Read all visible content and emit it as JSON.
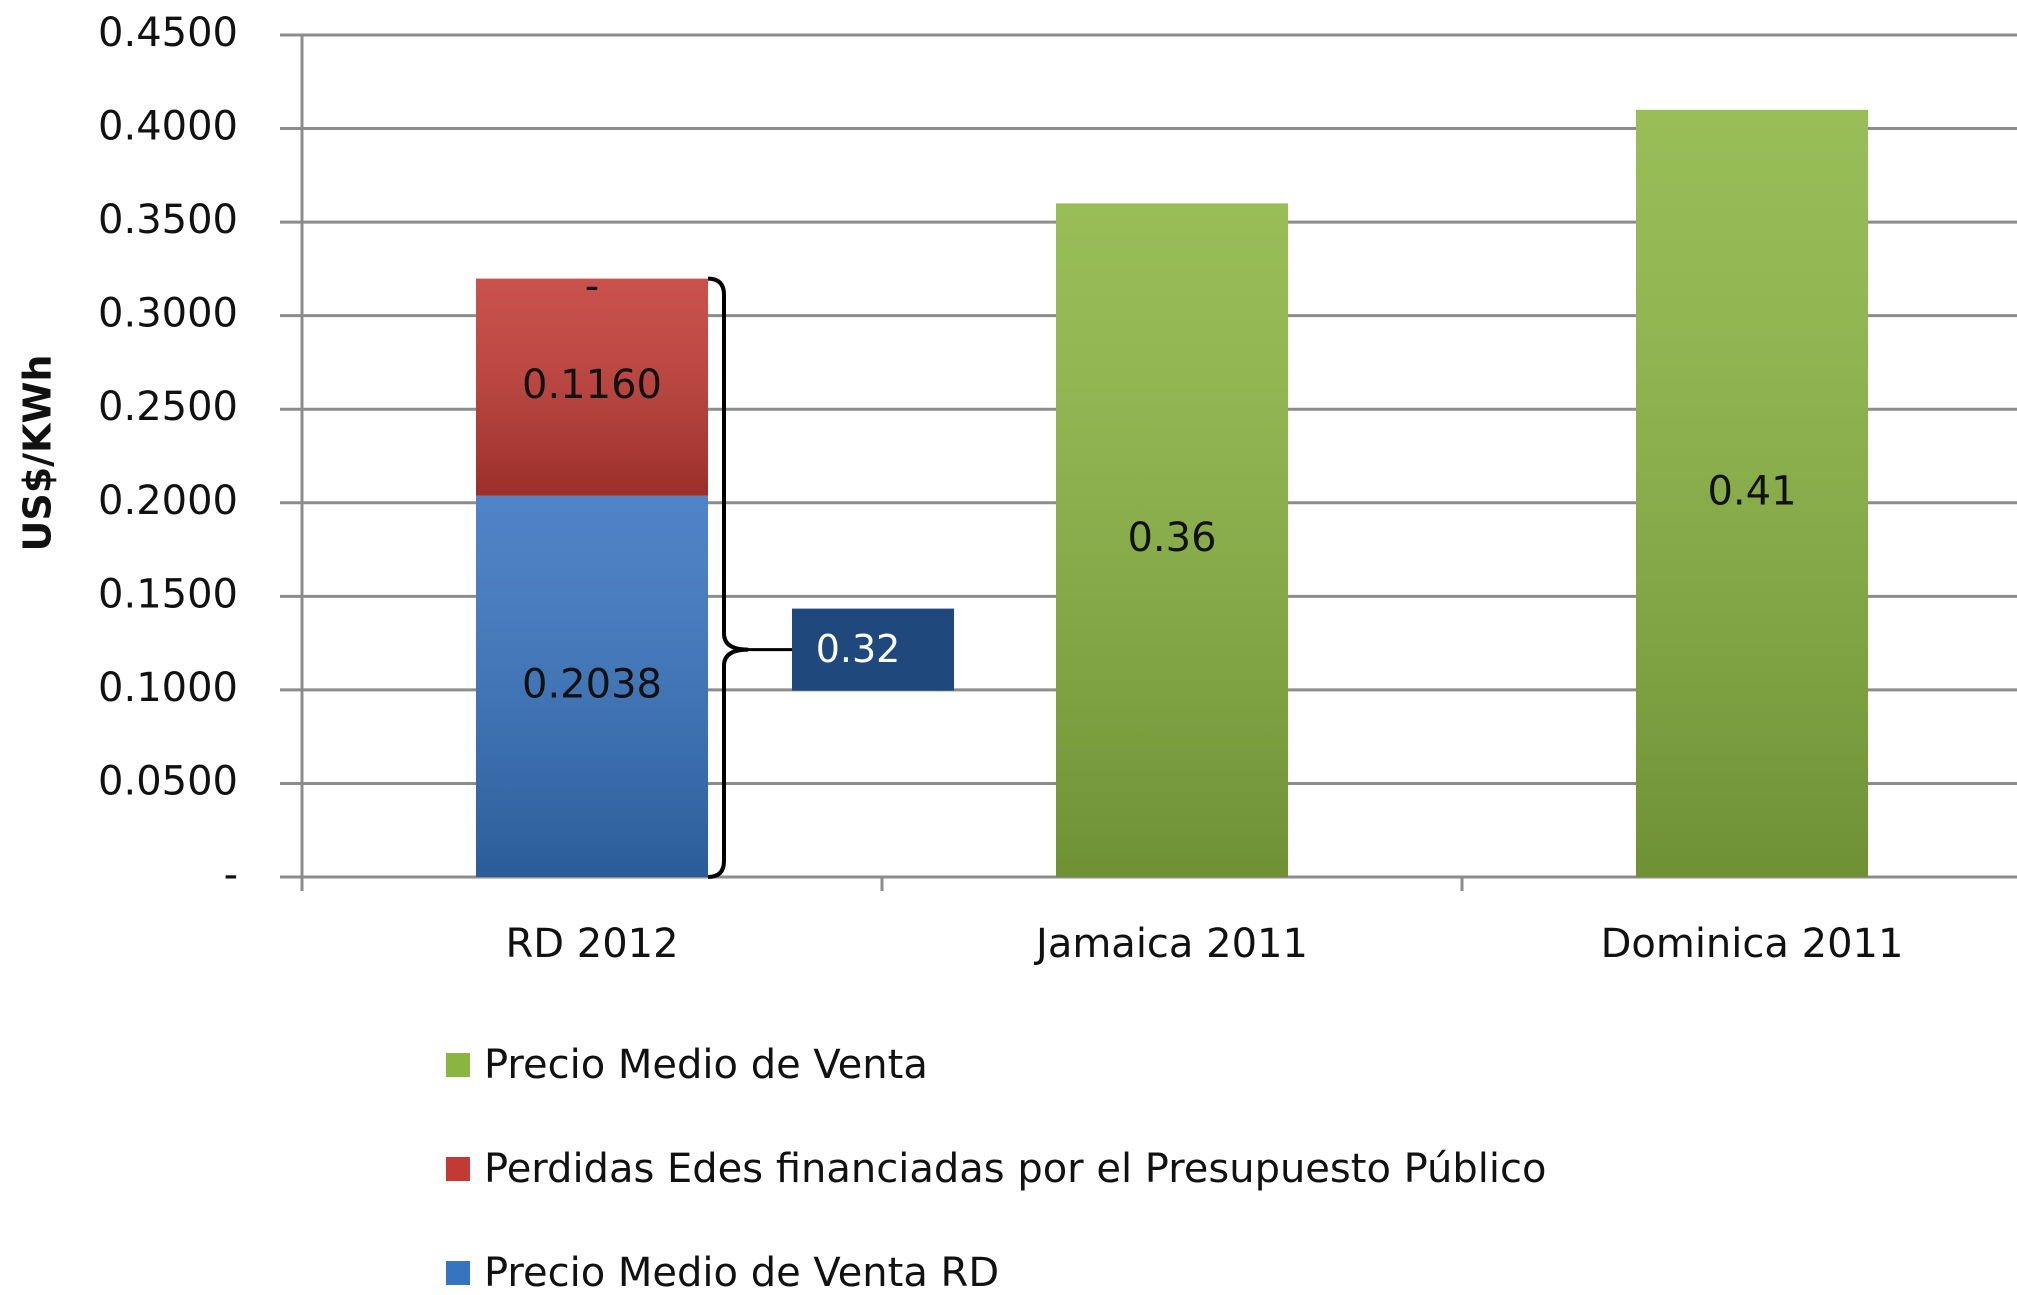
{
  "chart_data": {
    "type": "stacked_bar",
    "y_label": "US$/KWh",
    "categories": [
      "RD 2012",
      "Jamaica 2011",
      "Dominica 2011"
    ],
    "series": [
      {
        "name": "Precio Medio de Venta",
        "color": "#8ab541",
        "values": [
          0,
          0.36,
          0.41
        ],
        "value_labels": [
          "-",
          "0.36",
          "0.41"
        ]
      },
      {
        "name": "Perdidas Edes financiadas por el Presupuesto Público",
        "color": "#c23a34",
        "values": [
          0.116,
          null,
          null
        ],
        "value_labels": [
          "0.1160",
          null,
          null
        ]
      },
      {
        "name": "Precio Medio de Venta RD",
        "color": "#3673c0",
        "values": [
          0.2038,
          null,
          null
        ],
        "value_labels": [
          "0.2038",
          null,
          null
        ]
      }
    ],
    "annotation": "0.32",
    "ylim": [
      0,
      0.45
    ],
    "yticks": [
      {
        "value": 0,
        "label": "-"
      },
      {
        "value": 0.05,
        "label": "0.0500"
      },
      {
        "value": 0.1,
        "label": "0.1000"
      },
      {
        "value": 0.15,
        "label": "0.1500"
      },
      {
        "value": 0.2,
        "label": "0.2000"
      },
      {
        "value": 0.25,
        "label": "0.2500"
      },
      {
        "value": 0.3,
        "label": "0.3000"
      },
      {
        "value": 0.35,
        "label": "0.3500"
      },
      {
        "value": 0.4,
        "label": "0.4000"
      },
      {
        "value": 0.45,
        "label": "0.4500"
      }
    ],
    "grid": true
  }
}
